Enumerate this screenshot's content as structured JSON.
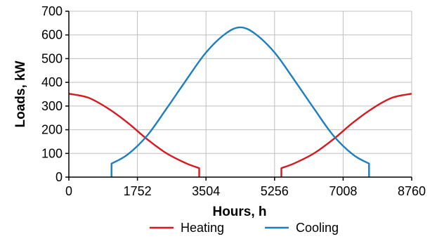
{
  "chart_data": {
    "type": "line",
    "title": "",
    "xlabel": "Hours, h",
    "ylabel": "Loads, kW",
    "xlim": [
      0,
      8760
    ],
    "ylim": [
      0,
      700
    ],
    "xticks": [
      0,
      1752,
      3504,
      5256,
      7008,
      8760
    ],
    "yticks": [
      0,
      100,
      200,
      300,
      400,
      500,
      600,
      700
    ],
    "xtick_labels": [
      "0",
      "1752",
      "3504",
      "5256",
      "7008",
      "8760"
    ],
    "ytick_labels": [
      "0",
      "100",
      "200",
      "300",
      "400",
      "500",
      "600",
      "700"
    ],
    "grid": true,
    "legend": "bottom",
    "series": [
      {
        "name": "Heating",
        "color": "#d7191f",
        "segments": [
          {
            "x": [
              0,
              500,
              1000,
              1500,
              2000,
              2500,
              3000,
              3330,
              3330
            ],
            "y": [
              352,
              335,
              290,
              230,
              160,
              100,
              58,
              38,
              0
            ]
          },
          {
            "x": [
              5430,
              5430,
              5760,
              6260,
              6760,
              7260,
              7760,
              8260,
              8760
            ],
            "y": [
              0,
              38,
              58,
              100,
              160,
              230,
              290,
              335,
              352
            ]
          }
        ]
      },
      {
        "name": "Cooling",
        "color": "#1a7ebf",
        "segments": [
          {
            "x": [
              1090,
              1090,
              1500,
              2000,
              2500,
              3000,
              3500,
              4000,
              4380,
              4760,
              5260,
              5760,
              6260,
              6760,
              7260,
              7670,
              7670
            ],
            "y": [
              0,
              57,
              95,
              175,
              290,
              410,
              525,
              605,
              632,
              605,
              525,
              410,
              290,
              175,
              95,
              57,
              0
            ]
          }
        ]
      }
    ]
  }
}
